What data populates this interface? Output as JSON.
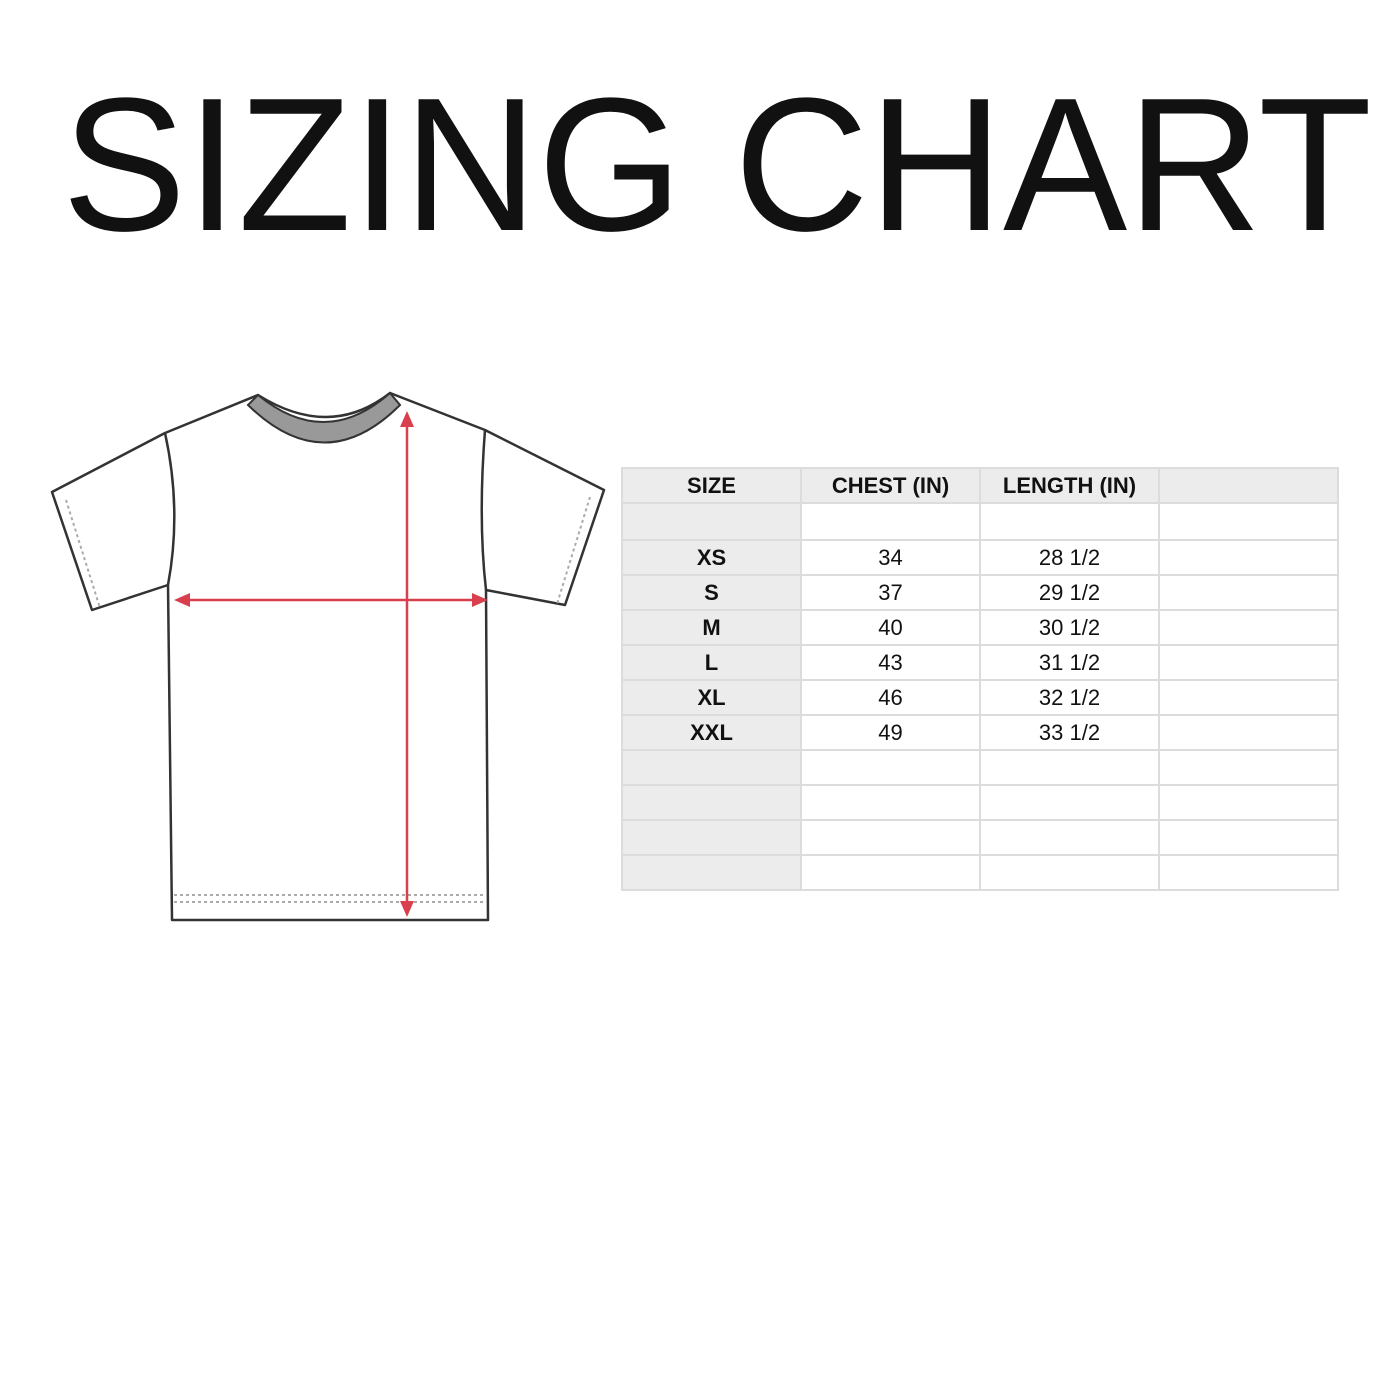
{
  "title": "SIZING CHART",
  "colors": {
    "measure_arrows": "#d9404e",
    "header_bg": "#ececec",
    "grid": "#dcdcdc"
  },
  "diagram": {
    "icon": "t-shirt-measurement-icon"
  },
  "table": {
    "headers": [
      "SIZE",
      "CHEST (IN)",
      "LENGTH (IN)",
      ""
    ],
    "rows": [
      [
        "XS",
        "34",
        "28 1/2",
        ""
      ],
      [
        "S",
        "37",
        "29 1/2",
        ""
      ],
      [
        "M",
        "40",
        "30 1/2",
        ""
      ],
      [
        "L",
        "43",
        "31 1/2",
        ""
      ],
      [
        "XL",
        "46",
        "32 1/2",
        ""
      ],
      [
        "XXL",
        "49",
        "33 1/2",
        ""
      ]
    ]
  }
}
